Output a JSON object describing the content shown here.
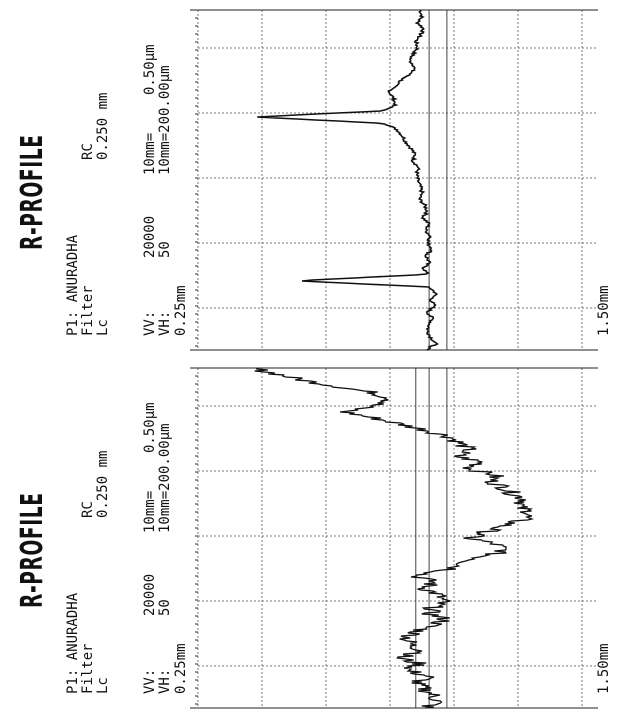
{
  "figure": {
    "panels": [
      {
        "title": "R-PROFILE",
        "meta_line1": "P1: ANURADHA",
        "meta_line2": "Filter",
        "meta_line2_value": "RC",
        "meta_line3": "Lc",
        "meta_line3_value": "0.250 mm",
        "vv_label": "VV:",
        "vv_value": "20000",
        "vv_scale": "10mm=",
        "vv_scale_value": "0.50μm",
        "vh_label": "VH:",
        "vh_value": "50",
        "vh_scale": "10mm=200.00μm",
        "axis_start": "0.25mm",
        "axis_end": "1.50mm"
      },
      {
        "title": "R-PROFILE",
        "meta_line1": "P1: ANURADHA",
        "meta_line2": "Filter",
        "meta_line2_value": "RC",
        "meta_line3": "Lc",
        "meta_line3_value": "0.250 mm",
        "vv_label": "VV:",
        "vv_value": "20000",
        "vv_scale": "10mm=",
        "vv_scale_value": "0.50μm",
        "vh_label": "VH:",
        "vh_value": "50",
        "vh_scale": "10mm=200.00μm",
        "axis_start": "0.25mm",
        "axis_end": "1.50mm"
      }
    ]
  },
  "chart_data": [
    {
      "type": "line",
      "title": "R-PROFILE",
      "xlabel": "",
      "ylabel": "",
      "xlim": [
        0.25,
        1.5
      ],
      "grid": true,
      "ylim": [
        -2.5,
        2.0
      ],
      "series": [
        {
          "values": [
            0.0,
            0.02,
            -0.03,
            0.04,
            0.0,
            -0.05,
            -0.03,
            -0.08,
            -0.12,
            -0.06,
            -0.1,
            -0.2,
            -0.28,
            -0.35,
            -0.3,
            -0.28,
            -0.4,
            -1.85,
            -0.4,
            -0.26,
            -0.2,
            -0.16,
            -0.1,
            -0.06,
            -0.08,
            -0.02,
            -0.04,
            -0.03,
            0.0,
            0.02,
            -0.01,
            0.05,
            0.08,
            0.03,
            0.1,
            0.06,
            0.12,
            0.08,
            0.14,
            0.06,
            0.1,
            0.04,
            0.08,
            -1.4,
            0.1,
            0.18,
            0.12,
            0.16,
            0.08,
            0.14,
            0.1,
            0.08,
            0.12,
            0.18,
            0.06
          ]
        }
      ],
      "reference_lines": [
        0.3,
        0.1
      ]
    },
    {
      "type": "line",
      "title": "R-PROFILE",
      "xlabel": "",
      "ylabel": "",
      "xlim": [
        0.25,
        1.5
      ],
      "grid": true,
      "ylim": [
        -2.5,
        2.0
      ],
      "series": [
        {
          "values": [
            -1.9,
            -1.6,
            -1.3,
            -0.9,
            -0.5,
            -0.3,
            -0.55,
            -0.85,
            -0.5,
            -0.2,
            0.1,
            0.35,
            0.45,
            0.55,
            0.4,
            0.7,
            0.55,
            0.85,
            0.8,
            0.95,
            1.05,
            1.2,
            1.1,
            1.25,
            1.15,
            0.95,
            0.75,
            0.55,
            0.85,
            0.95,
            0.7,
            0.5,
            0.35,
            -0.05,
            0.15,
            0.05,
            0.2,
            0.25,
            0.15,
            0.1,
            0.3,
            0.1,
            -0.05,
            -0.15,
            -0.1,
            0.05,
            -0.25,
            0.0,
            -0.15,
            0.1,
            -0.05,
            0.05,
            0.15,
            0.2,
            0.05
          ]
        }
      ],
      "reference_lines": [
        0.3,
        0.1,
        -0.05
      ]
    }
  ]
}
